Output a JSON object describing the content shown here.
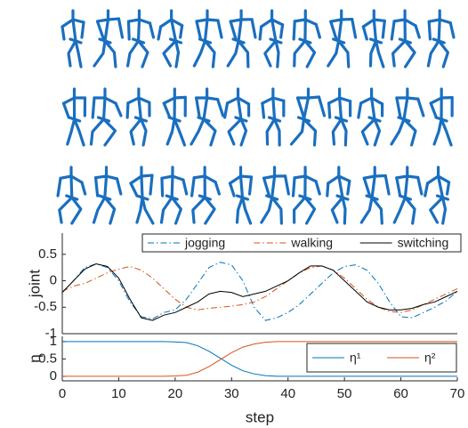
{
  "chart_data": [
    {
      "type": "line",
      "ylabel": "joint",
      "xlim": [
        0,
        70
      ],
      "ylim": [
        -1,
        0.9
      ],
      "yticks": [
        -1,
        -0.5,
        0,
        0.5
      ],
      "legend": "top",
      "x": [
        0,
        2,
        4,
        6,
        8,
        10,
        12,
        14,
        16,
        18,
        20,
        22,
        24,
        26,
        28,
        30,
        32,
        34,
        36,
        38,
        40,
        42,
        44,
        46,
        48,
        50,
        52,
        54,
        56,
        58,
        60,
        62,
        64,
        66,
        68,
        70
      ],
      "series": [
        {
          "name": "jogging",
          "color": "#0072bd",
          "dash": "dash-dot",
          "values": [
            -0.22,
            0.0,
            0.25,
            0.32,
            0.25,
            0.0,
            -0.4,
            -0.68,
            -0.72,
            -0.6,
            -0.55,
            -0.35,
            -0.05,
            0.25,
            0.35,
            0.3,
            0.0,
            -0.5,
            -0.75,
            -0.7,
            -0.6,
            -0.45,
            -0.25,
            -0.05,
            0.15,
            0.27,
            0.3,
            0.2,
            -0.05,
            -0.4,
            -0.68,
            -0.7,
            -0.6,
            -0.5,
            -0.38,
            -0.2
          ]
        },
        {
          "name": "walking",
          "color": "#d95319",
          "dash": "dash-dot",
          "values": [
            -0.2,
            -0.1,
            -0.05,
            0.05,
            0.15,
            0.22,
            0.27,
            0.2,
            0.05,
            -0.15,
            -0.35,
            -0.5,
            -0.55,
            -0.52,
            -0.5,
            -0.48,
            -0.45,
            -0.4,
            -0.3,
            -0.15,
            0.0,
            0.15,
            0.25,
            0.28,
            0.2,
            0.05,
            -0.15,
            -0.35,
            -0.5,
            -0.58,
            -0.6,
            -0.55,
            -0.45,
            -0.35,
            -0.25,
            -0.15
          ]
        },
        {
          "name": "switching",
          "color": "#000000",
          "dash": "solid",
          "values": [
            -0.22,
            0.0,
            0.22,
            0.32,
            0.27,
            0.05,
            -0.35,
            -0.7,
            -0.75,
            -0.65,
            -0.6,
            -0.5,
            -0.4,
            -0.25,
            -0.2,
            -0.22,
            -0.3,
            -0.25,
            -0.2,
            -0.1,
            0.0,
            0.15,
            0.28,
            0.28,
            0.2,
            0.0,
            -0.2,
            -0.4,
            -0.5,
            -0.55,
            -0.55,
            -0.52,
            -0.45,
            -0.4,
            -0.3,
            -0.2
          ]
        }
      ]
    },
    {
      "type": "line",
      "ylabel": "η",
      "xlabel": "step",
      "xlim": [
        0,
        70
      ],
      "ylim": [
        -0.13,
        1.15
      ],
      "yticks": [
        0,
        0.5,
        1
      ],
      "xticks": [
        0,
        10,
        20,
        30,
        40,
        50,
        60,
        70
      ],
      "legend": "bottom-right",
      "x": [
        0,
        2,
        4,
        6,
        8,
        10,
        12,
        14,
        16,
        18,
        20,
        22,
        24,
        26,
        28,
        30,
        32,
        34,
        36,
        38,
        40,
        42,
        44,
        46,
        48,
        50,
        52,
        54,
        56,
        58,
        60,
        62,
        64,
        66,
        68,
        70
      ],
      "series": [
        {
          "name": "η¹",
          "color": "#0072bd",
          "dash": "solid",
          "values": [
            1,
            1,
            1,
            1,
            1,
            1,
            1,
            1,
            1,
            1,
            0.99,
            0.97,
            0.88,
            0.72,
            0.52,
            0.32,
            0.16,
            0.07,
            0.02,
            0,
            0,
            0,
            0,
            0,
            0,
            0,
            0,
            0,
            0,
            0,
            0,
            0,
            0,
            0,
            0,
            0
          ]
        },
        {
          "name": "η²",
          "color": "#d95319",
          "dash": "solid",
          "values": [
            0,
            0,
            0,
            0,
            0,
            0,
            0,
            0,
            0,
            0,
            0.01,
            0.03,
            0.12,
            0.28,
            0.48,
            0.68,
            0.84,
            0.93,
            0.98,
            1,
            1,
            1,
            1,
            1,
            1,
            1,
            1,
            1,
            1,
            1,
            1,
            1,
            1,
            1,
            1,
            1
          ]
        }
      ]
    }
  ]
}
